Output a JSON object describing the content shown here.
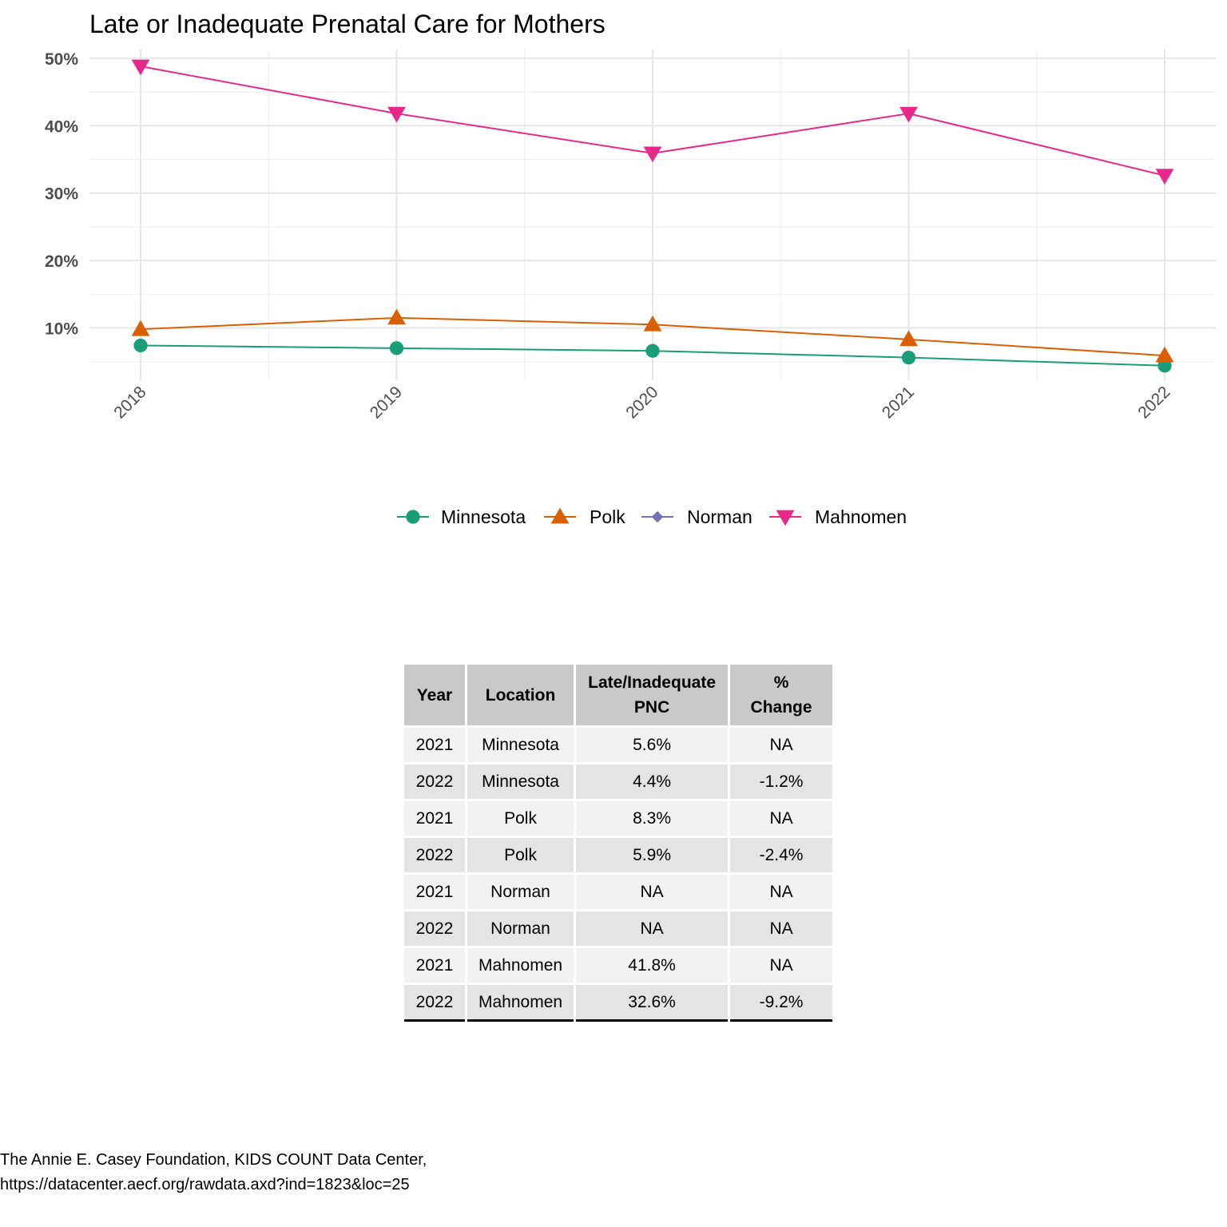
{
  "chart_data": {
    "type": "line",
    "title": "Late or Inadequate Prenatal Care for Mothers",
    "xlabel": "",
    "ylabel": "",
    "x": [
      "2018",
      "2019",
      "2020",
      "2021",
      "2022"
    ],
    "y_ticks": [
      {
        "value": 0.1,
        "label": "10%"
      },
      {
        "value": 0.2,
        "label": "20%"
      },
      {
        "value": 0.3,
        "label": "30%"
      },
      {
        "value": 0.4,
        "label": "40%"
      },
      {
        "value": 0.5,
        "label": "50%"
      }
    ],
    "ylim": [
      0.025,
      0.515
    ],
    "grid": true,
    "legend_position": "bottom",
    "series": [
      {
        "name": "Minnesota",
        "color": "#1b9e77",
        "marker": "circle",
        "values": [
          0.074,
          0.07,
          0.066,
          0.056,
          0.044
        ]
      },
      {
        "name": "Polk",
        "color": "#d95f02",
        "marker": "triangle-up",
        "values": [
          0.098,
          0.115,
          0.105,
          0.083,
          0.059
        ]
      },
      {
        "name": "Norman",
        "color": "#7570b3",
        "marker": "diamond",
        "values": [
          null,
          null,
          null,
          null,
          null
        ]
      },
      {
        "name": "Mahnomen",
        "color": "#e7298a",
        "marker": "triangle-down",
        "values": [
          0.488,
          0.418,
          0.359,
          0.418,
          0.326
        ]
      }
    ]
  },
  "table": {
    "headers": [
      "Year",
      "Location",
      "Late/Inadequate PNC",
      "% Change"
    ],
    "rows": [
      [
        "2021",
        "Minnesota",
        "5.6%",
        "NA"
      ],
      [
        "2022",
        "Minnesota",
        "4.4%",
        "-1.2%"
      ],
      [
        "2021",
        "Polk",
        "8.3%",
        "NA"
      ],
      [
        "2022",
        "Polk",
        "5.9%",
        "-2.4%"
      ],
      [
        "2021",
        "Norman",
        "NA",
        "NA"
      ],
      [
        "2022",
        "Norman",
        "NA",
        "NA"
      ],
      [
        "2021",
        "Mahnomen",
        "41.8%",
        "NA"
      ],
      [
        "2022",
        "Mahnomen",
        "32.6%",
        "-9.2%"
      ]
    ]
  },
  "source": {
    "line1": "The Annie E. Casey Foundation, KIDS COUNT Data Center,",
    "line2": "https://datacenter.aecf.org/rawdata.axd?ind=1823&loc=25"
  }
}
